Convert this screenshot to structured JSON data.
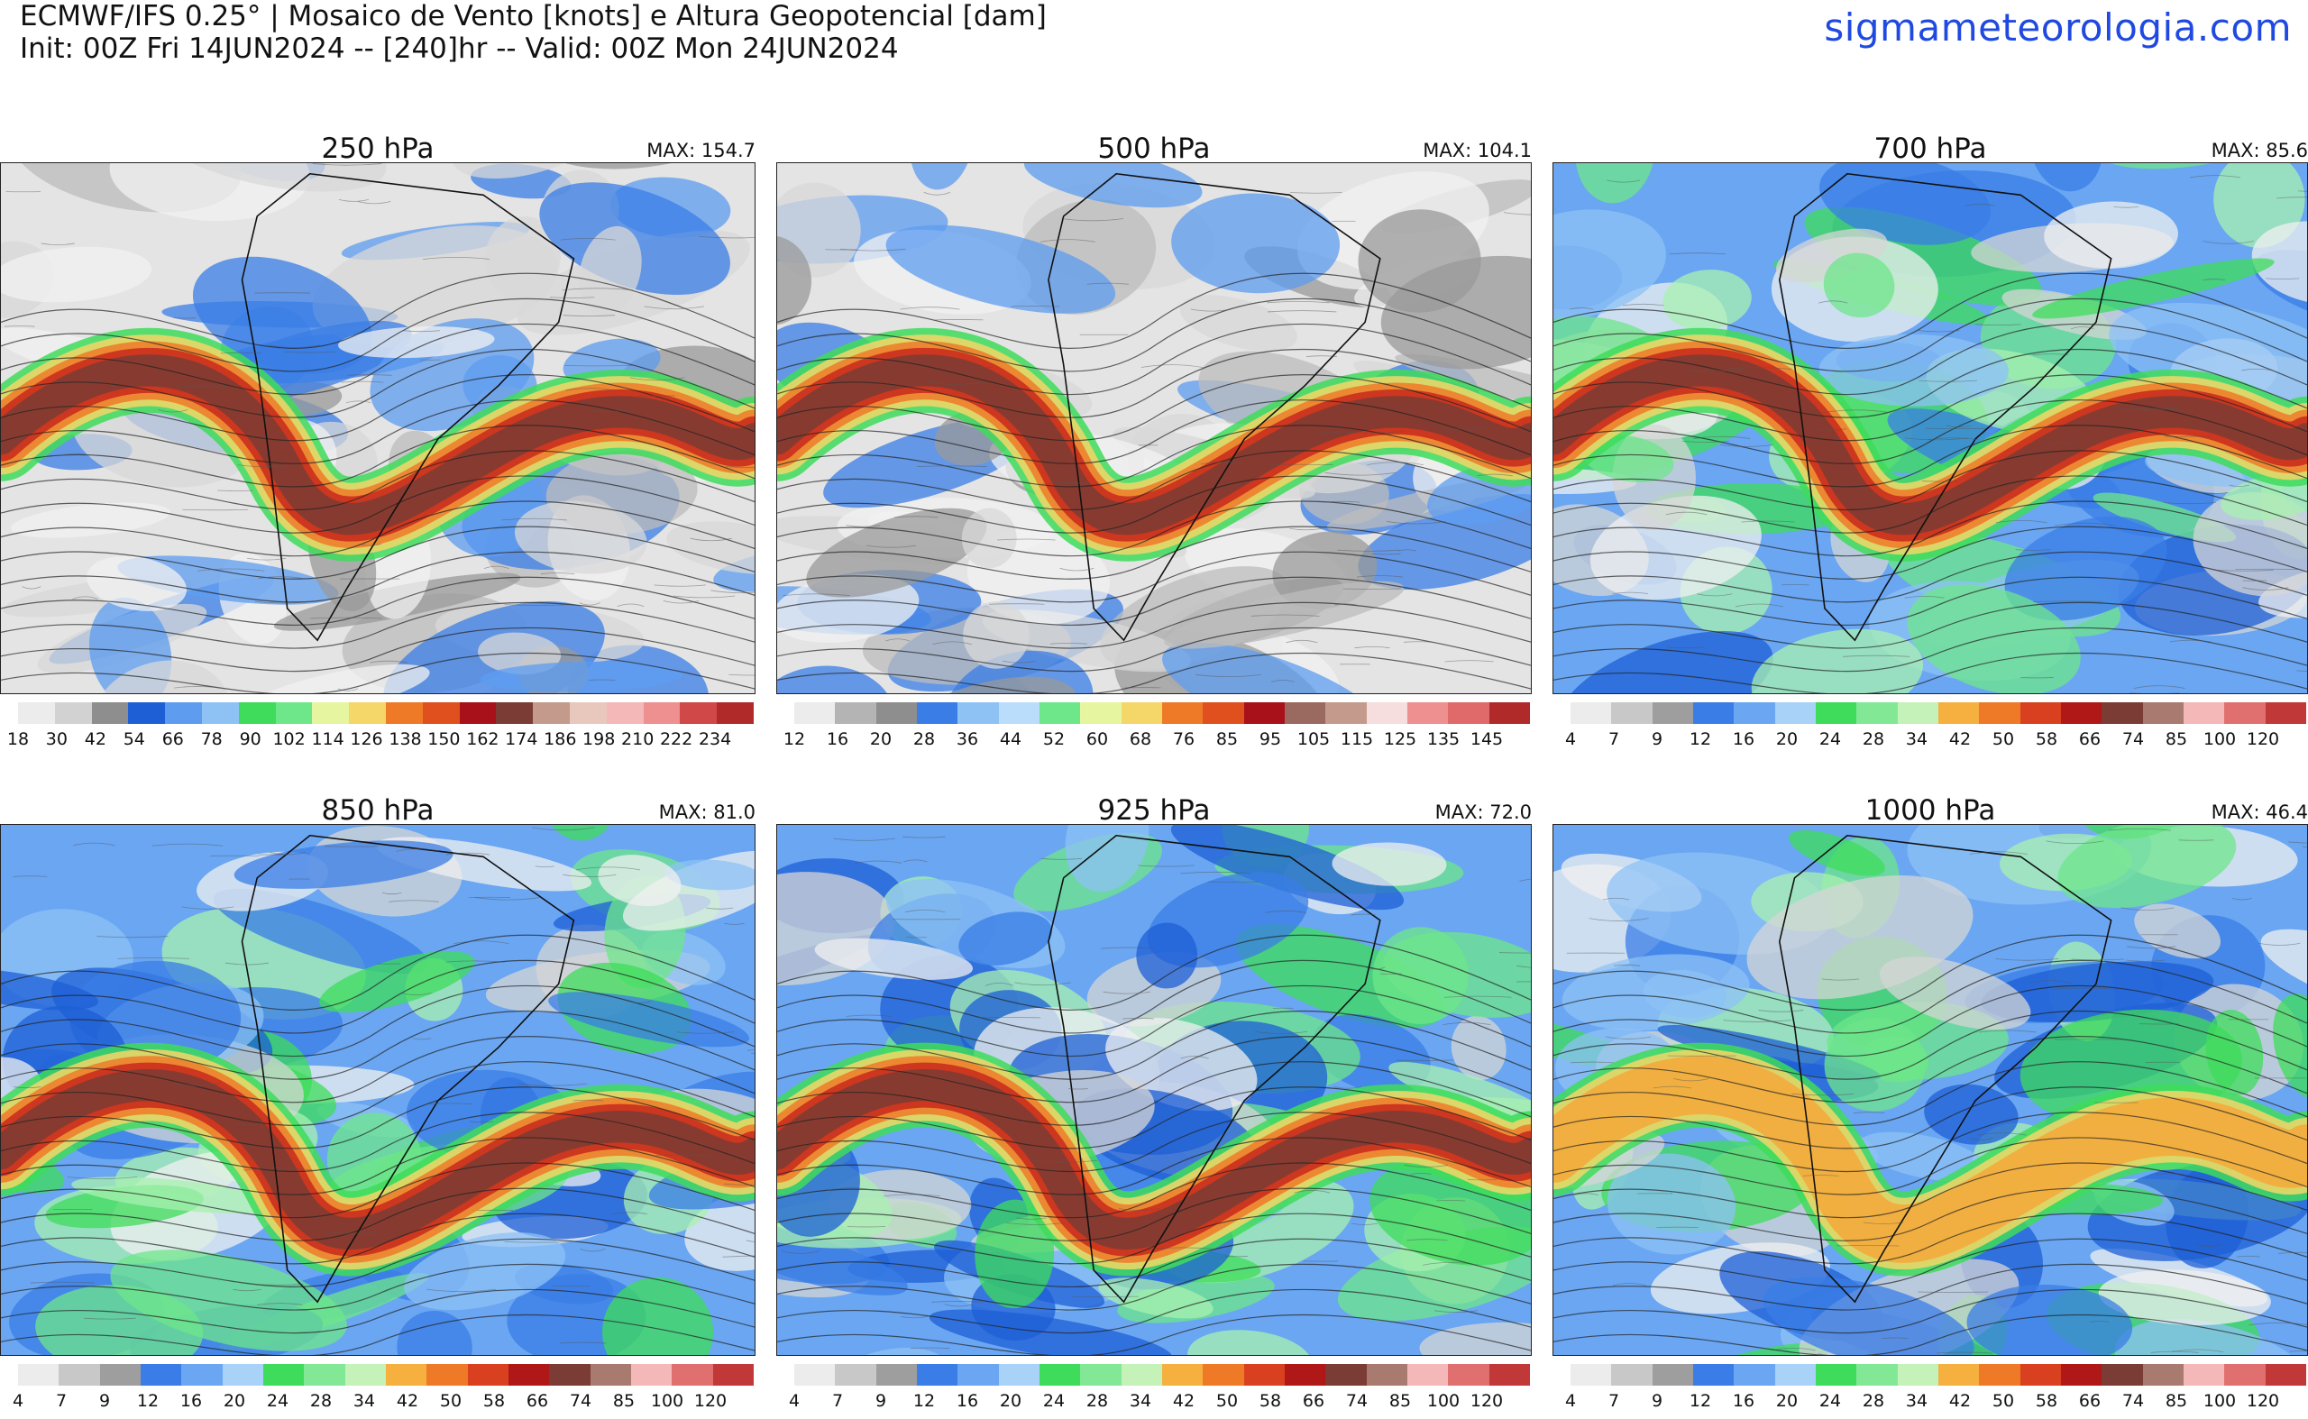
{
  "header": {
    "line1": "ECMWF/IFS 0.25° | Mosaico de Vento [knots] e Altura Geopotencial [dam]",
    "line2": "Init: 00Z Fri 14JUN2024 -- [240]hr -- Valid: 00Z Mon 24JUN2024",
    "brand": "sigmameteorologia.com"
  },
  "panels": [
    {
      "level": "250 hPa",
      "max": "MAX: 154.7",
      "colorbar": [
        "18",
        "30",
        "42",
        "54",
        "66",
        "78",
        "90",
        "102",
        "114",
        "126",
        "138",
        "150",
        "162",
        "174",
        "186",
        "198",
        "210",
        "222",
        "234"
      ],
      "jet": "strong"
    },
    {
      "level": "500 hPa",
      "max": "MAX: 104.1",
      "colorbar": [
        "12",
        "16",
        "20",
        "28",
        "36",
        "44",
        "52",
        "60",
        "68",
        "76",
        "85",
        "95",
        "105",
        "115",
        "125",
        "135",
        "145"
      ],
      "jet": "strong"
    },
    {
      "level": "700 hPa",
      "max": "MAX: 85.6",
      "colorbar": [
        "4",
        "7",
        "9",
        "12",
        "16",
        "20",
        "24",
        "28",
        "34",
        "42",
        "50",
        "58",
        "66",
        "74",
        "85",
        "100",
        "120"
      ],
      "jet": "medium"
    },
    {
      "level": "850 hPa",
      "max": "MAX: 81.0",
      "colorbar": [
        "4",
        "7",
        "9",
        "12",
        "16",
        "20",
        "24",
        "28",
        "34",
        "42",
        "50",
        "58",
        "66",
        "74",
        "85",
        "100",
        "120"
      ],
      "jet": "medium"
    },
    {
      "level": "925 hPa",
      "max": "MAX: 72.0",
      "colorbar": [
        "4",
        "7",
        "9",
        "12",
        "16",
        "20",
        "24",
        "28",
        "34",
        "42",
        "50",
        "58",
        "66",
        "74",
        "85",
        "100",
        "120"
      ],
      "jet": "medium"
    },
    {
      "level": "1000 hPa",
      "max": "MAX: 46.4",
      "colorbar": [
        "4",
        "7",
        "9",
        "12",
        "16",
        "20",
        "24",
        "28",
        "34",
        "42",
        "50",
        "58",
        "66",
        "74",
        "85",
        "100",
        "120"
      ],
      "jet": "weak"
    }
  ],
  "colors": {
    "palette": [
      "#ececec",
      "#d2d2d2",
      "#b4b4b4",
      "#8e8e8e",
      "#1e5fd6",
      "#3a7de6",
      "#5e9cf0",
      "#8ec2f5",
      "#b9ddfa",
      "#3edc5a",
      "#6ee68a",
      "#a8f0b0",
      "#e6f5a0",
      "#f5d668",
      "#f5a83a",
      "#ee7a28",
      "#e0501e",
      "#c8281c",
      "#a8101a",
      "#7a3c34",
      "#9a6a60",
      "#c49a8c",
      "#e8c8bc",
      "#f7dede",
      "#f4b8b8",
      "#ee9090",
      "#e06a6a",
      "#d04848",
      "#b02a2a"
    ],
    "brand": "#1f49e0"
  }
}
